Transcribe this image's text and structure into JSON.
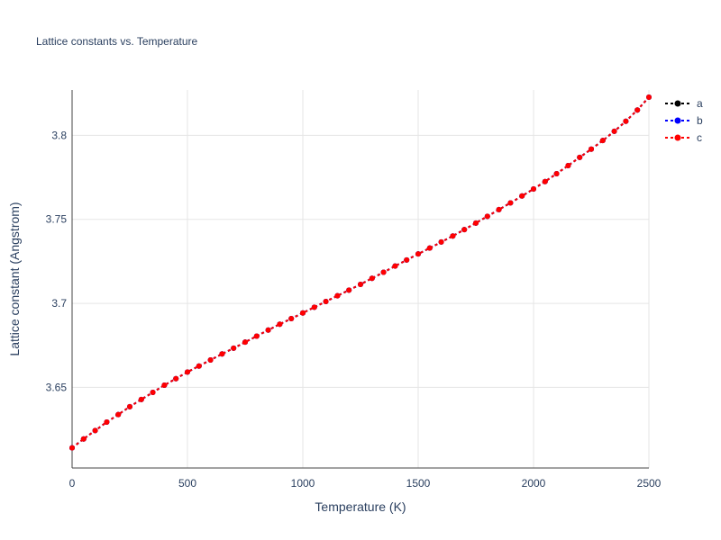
{
  "chart_data": {
    "type": "line",
    "title": "Lattice constants vs. Temperature",
    "xlabel": "Temperature (K)",
    "ylabel": "Lattice constant (Angstrom)",
    "xlim": [
      0,
      2500
    ],
    "ylim": [
      3.602,
      3.827
    ],
    "x_ticks": [
      0,
      500,
      1000,
      1500,
      2000,
      2500
    ],
    "x_tick_labels": [
      "0",
      "500",
      "1000",
      "1500",
      "2000",
      "2500"
    ],
    "y_ticks": [
      3.65,
      3.7,
      3.75,
      3.8
    ],
    "y_tick_labels": [
      "3.65",
      "3.7",
      "3.75",
      "3.8"
    ],
    "grid": true,
    "legend_position": "top-right",
    "x": [
      0,
      50,
      100,
      150,
      200,
      250,
      300,
      350,
      400,
      450,
      500,
      550,
      600,
      650,
      700,
      750,
      800,
      850,
      900,
      950,
      1000,
      1050,
      1100,
      1150,
      1200,
      1250,
      1300,
      1350,
      1400,
      1450,
      1500,
      1550,
      1600,
      1650,
      1700,
      1750,
      1800,
      1850,
      1900,
      1950,
      2000,
      2050,
      2100,
      2150,
      2200,
      2250,
      2300,
      2350,
      2400,
      2450,
      2500
    ],
    "series": [
      {
        "name": "a",
        "color": "#000000",
        "values": [
          3.614,
          3.6193,
          3.6243,
          3.6293,
          3.6338,
          3.6385,
          3.6428,
          3.647,
          3.6513,
          3.6552,
          3.6591,
          3.6627,
          3.6663,
          3.6699,
          3.6733,
          3.6769,
          3.6805,
          3.6841,
          3.6876,
          3.6909,
          3.6943,
          3.6977,
          3.7011,
          3.7045,
          3.7079,
          3.7113,
          3.7149,
          3.7185,
          3.7222,
          3.7258,
          3.7294,
          3.7329,
          3.7365,
          3.7401,
          3.7439,
          3.7478,
          3.7518,
          3.7558,
          3.7598,
          3.7639,
          3.7681,
          3.7725,
          3.7772,
          3.782,
          3.7869,
          3.7918,
          3.7969,
          3.8024,
          3.8084,
          3.8151,
          3.8227
        ]
      },
      {
        "name": "b",
        "color": "#0000ff",
        "values": [
          3.614,
          3.6193,
          3.6243,
          3.6293,
          3.6338,
          3.6385,
          3.6428,
          3.647,
          3.6513,
          3.6552,
          3.6591,
          3.6627,
          3.6663,
          3.6699,
          3.6733,
          3.6769,
          3.6805,
          3.6841,
          3.6876,
          3.6909,
          3.6943,
          3.6977,
          3.7011,
          3.7045,
          3.7079,
          3.7113,
          3.7149,
          3.7185,
          3.7222,
          3.7258,
          3.7294,
          3.7329,
          3.7365,
          3.7401,
          3.7439,
          3.7478,
          3.7518,
          3.7558,
          3.7598,
          3.7639,
          3.7681,
          3.7725,
          3.7772,
          3.782,
          3.7869,
          3.7918,
          3.7969,
          3.8024,
          3.8084,
          3.8151,
          3.8227
        ]
      },
      {
        "name": "c",
        "color": "#ff0000",
        "values": [
          3.614,
          3.6193,
          3.6243,
          3.6293,
          3.6338,
          3.6385,
          3.6428,
          3.647,
          3.6513,
          3.6552,
          3.6591,
          3.6627,
          3.6663,
          3.6699,
          3.6733,
          3.6769,
          3.6805,
          3.6841,
          3.6876,
          3.6909,
          3.6943,
          3.6977,
          3.7011,
          3.7045,
          3.7079,
          3.7113,
          3.7149,
          3.7185,
          3.7222,
          3.7258,
          3.7294,
          3.7329,
          3.7365,
          3.7401,
          3.7439,
          3.7478,
          3.7518,
          3.7558,
          3.7598,
          3.7639,
          3.7681,
          3.7725,
          3.7772,
          3.782,
          3.7869,
          3.7918,
          3.7969,
          3.8024,
          3.8084,
          3.8151,
          3.8227
        ]
      }
    ]
  }
}
